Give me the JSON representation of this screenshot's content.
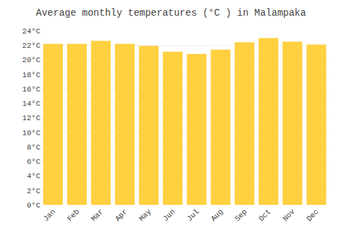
{
  "chart_data": {
    "type": "bar",
    "title": "Average monthly temperatures (°C ) in Malampaka",
    "categories": [
      "Jan",
      "Feb",
      "Mar",
      "Apr",
      "May",
      "Jun",
      "Jul",
      "Aug",
      "Sep",
      "Oct",
      "Nov",
      "Dec"
    ],
    "values": [
      22.2,
      22.2,
      22.6,
      22.2,
      21.9,
      21.1,
      20.8,
      21.4,
      22.4,
      23.0,
      22.5,
      22.1
    ],
    "color": "#FFD040",
    "ylim": [
      0,
      24
    ],
    "yticks": [
      {
        "value": 0,
        "label": "0°C"
      },
      {
        "value": 2,
        "label": "2°C"
      },
      {
        "value": 4,
        "label": "4°C"
      },
      {
        "value": 6,
        "label": "6°C"
      },
      {
        "value": 8,
        "label": "8°C"
      },
      {
        "value": 10,
        "label": "10°C"
      },
      {
        "value": 12,
        "label": "12°C"
      },
      {
        "value": 14,
        "label": "14°C"
      },
      {
        "value": 16,
        "label": "16°C"
      },
      {
        "value": 18,
        "label": "18°C"
      },
      {
        "value": 20,
        "label": "20°C"
      },
      {
        "value": 22,
        "label": "22°C"
      },
      {
        "value": 24,
        "label": "24°C"
      }
    ],
    "grid": true
  }
}
